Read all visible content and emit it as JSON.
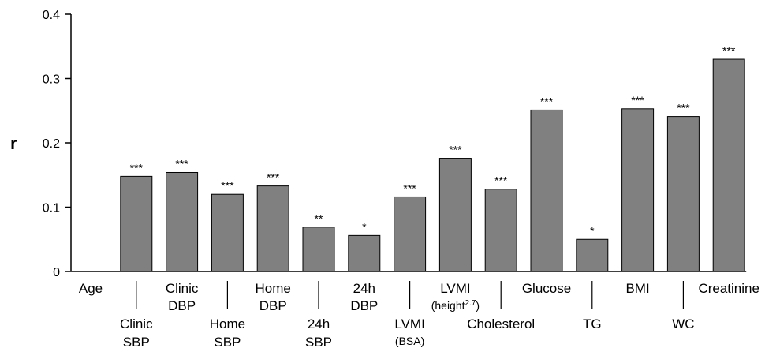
{
  "chart_data": {
    "type": "bar",
    "title": "",
    "xlabel": "",
    "ylabel": "r",
    "ylim": [
      0,
      0.4
    ],
    "yticks": [
      0,
      0.1,
      0.2,
      0.3,
      0.4
    ],
    "ytick_labels": [
      "0",
      "0.1",
      "0.2",
      "0.3",
      "0.4"
    ],
    "grid": false,
    "bar_color": "#808080",
    "categories": [
      {
        "lines": [
          "Age"
        ],
        "row": "top"
      },
      {
        "lines": [
          "Clinic",
          "SBP"
        ],
        "row": "bottom"
      },
      {
        "lines": [
          "Clinic",
          "DBP"
        ],
        "row": "top"
      },
      {
        "lines": [
          "Home",
          "SBP"
        ],
        "row": "bottom"
      },
      {
        "lines": [
          "Home",
          "DBP"
        ],
        "row": "top"
      },
      {
        "lines": [
          "24h",
          "SBP"
        ],
        "row": "bottom"
      },
      {
        "lines": [
          "24h",
          "DBP"
        ],
        "row": "top"
      },
      {
        "lines": [
          "LVMI",
          "(BSA)"
        ],
        "row": "bottom",
        "small_second": true
      },
      {
        "lines": [
          "LVMI",
          "(height"
        ],
        "sup": "2.7",
        "suffix": ")",
        "row": "top",
        "small_second": true
      },
      {
        "lines": [
          "Cholesterol"
        ],
        "row": "bottom"
      },
      {
        "lines": [
          "Glucose"
        ],
        "row": "top"
      },
      {
        "lines": [
          "TG"
        ],
        "row": "bottom"
      },
      {
        "lines": [
          "BMI"
        ],
        "row": "top"
      },
      {
        "lines": [
          "WC"
        ],
        "row": "bottom"
      },
      {
        "lines": [
          "Creatinine"
        ],
        "row": "top"
      }
    ],
    "values": [
      0,
      0.148,
      0.154,
      0.12,
      0.133,
      0.069,
      0.056,
      0.116,
      0.176,
      0.128,
      0.251,
      0.05,
      0.253,
      0.241,
      0.33
    ],
    "significance": [
      "",
      "***",
      "***",
      "***",
      "***",
      "**",
      "*",
      "***",
      "***",
      "***",
      "***",
      "*",
      "***",
      "***",
      "***"
    ]
  }
}
